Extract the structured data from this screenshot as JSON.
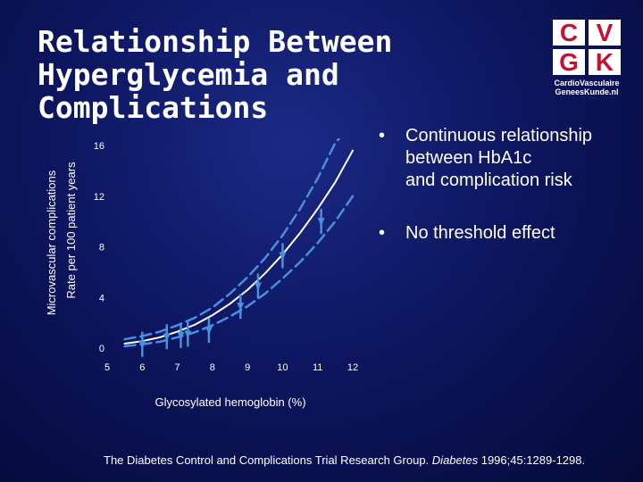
{
  "slide": {
    "title_lines": [
      "Relationship Between",
      "Hyperglycemia and",
      "Complications"
    ]
  },
  "logo": {
    "letters": [
      "C",
      "V",
      "G",
      "K"
    ],
    "line1": "CardioVasculaire",
    "line2": "GeneesKunde.nl",
    "letter_color": "#c8102e"
  },
  "bullets": [
    {
      "marker": "•",
      "lines": [
        "Continuous relationship",
        "between HbA1c",
        "and complication risk"
      ]
    },
    {
      "marker": "•",
      "lines": [
        "No threshold effect"
      ]
    }
  ],
  "source": {
    "prefix": "The Diabetes Control and Complications Trial Research Group. ",
    "journal": "Diabetes",
    "suffix": " 1996;45:1289-1298."
  },
  "chart_data": {
    "type": "line",
    "xlabel": "Glycosylated hemoglobin (%)",
    "ylabel_lines": [
      "Microvascular complications",
      "Rate per 100 patient years"
    ],
    "xlim": [
      5,
      12
    ],
    "ylim": [
      0,
      16
    ],
    "xticks": [
      5,
      6,
      7,
      8,
      9,
      10,
      11,
      12
    ],
    "yticks": [
      0,
      4,
      8,
      12,
      16
    ],
    "colors": {
      "central": "#ffffff",
      "ci": "#4a8fe0",
      "markers": "#4a8fe0"
    },
    "series": [
      {
        "role": "central",
        "x": [
          5.5,
          6,
          6.5,
          7,
          7.5,
          8,
          8.5,
          9,
          9.5,
          10,
          10.5,
          11,
          11.5,
          12
        ],
        "y": [
          0.35,
          0.55,
          0.85,
          1.3,
          1.85,
          2.6,
          3.5,
          4.6,
          5.9,
          7.4,
          9.1,
          11.0,
          13.1,
          15.6
        ]
      },
      {
        "role": "ci-upper",
        "x": [
          5.5,
          6,
          6.5,
          7,
          7.5,
          8,
          8.5,
          9,
          9.5,
          10,
          10.5,
          11,
          11.5,
          12
        ],
        "y": [
          0.7,
          0.95,
          1.3,
          1.8,
          2.4,
          3.2,
          4.3,
          5.6,
          7.1,
          8.9,
          11.0,
          13.4,
          16.2,
          17.8
        ]
      },
      {
        "role": "ci-lower",
        "x": [
          5.5,
          6,
          6.5,
          7,
          7.5,
          8,
          8.5,
          9,
          9.5,
          10,
          10.5,
          11,
          11.5,
          12
        ],
        "y": [
          0.15,
          0.3,
          0.5,
          0.85,
          1.25,
          1.8,
          2.5,
          3.3,
          4.3,
          5.5,
          6.8,
          8.3,
          10.0,
          12.0
        ]
      }
    ],
    "markers": [
      {
        "x": 6.0,
        "y": 0.3
      },
      {
        "x": 6.7,
        "y": 0.9
      },
      {
        "x": 7.1,
        "y": 1.0
      },
      {
        "x": 7.3,
        "y": 1.1
      },
      {
        "x": 7.9,
        "y": 1.4
      },
      {
        "x": 8.8,
        "y": 3.3
      },
      {
        "x": 9.3,
        "y": 4.9
      },
      {
        "x": 10.0,
        "y": 7.3
      },
      {
        "x": 11.1,
        "y": 10.0
      }
    ]
  }
}
